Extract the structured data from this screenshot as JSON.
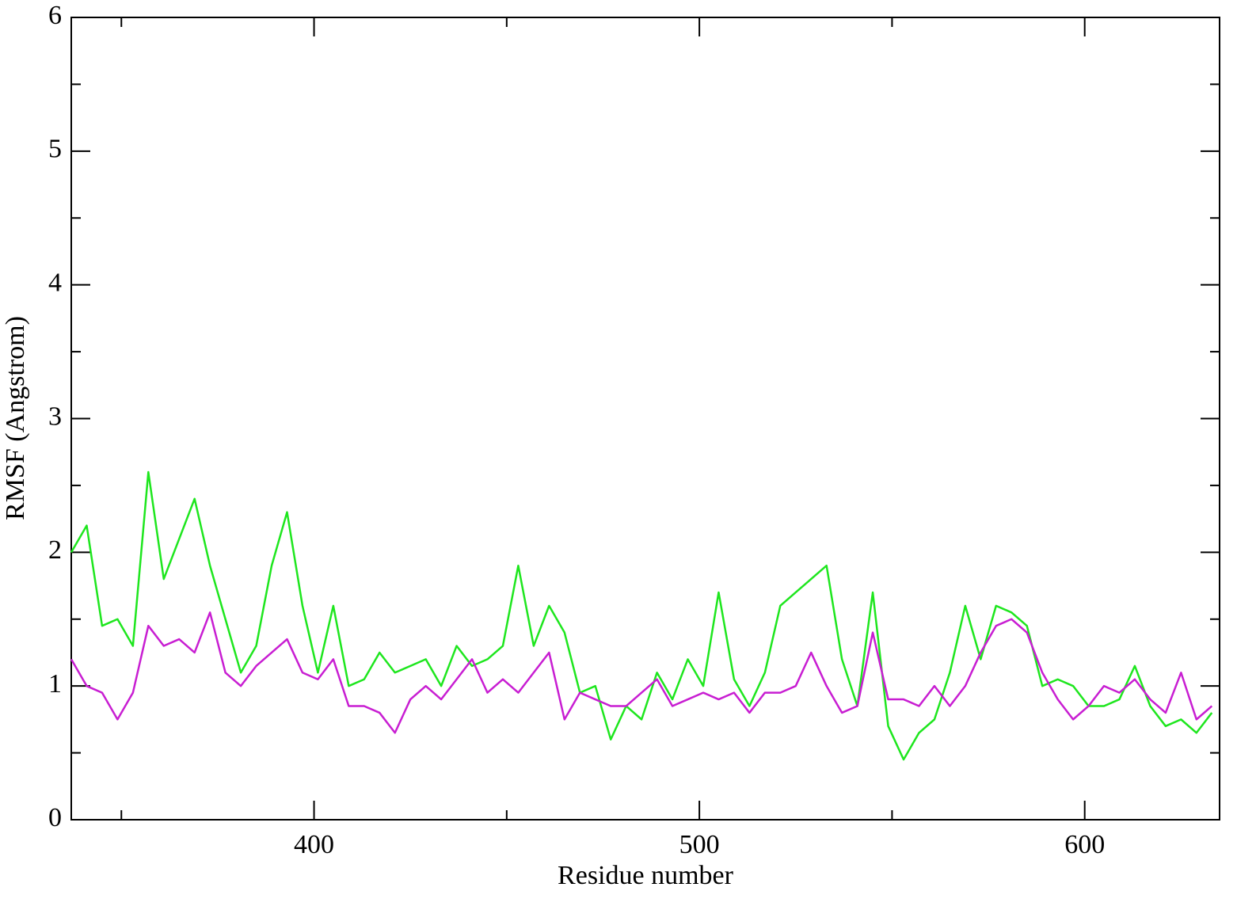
{
  "chart_data": {
    "type": "line",
    "xlabel": "Residue number",
    "ylabel": "RMSF (Angstrom)",
    "x": [
      337,
      341,
      345,
      349,
      353,
      357,
      361,
      365,
      369,
      373,
      377,
      381,
      385,
      389,
      393,
      397,
      401,
      405,
      409,
      413,
      417,
      421,
      425,
      429,
      433,
      437,
      441,
      445,
      449,
      453,
      457,
      461,
      465,
      469,
      473,
      477,
      481,
      485,
      489,
      493,
      497,
      501,
      505,
      509,
      513,
      517,
      521,
      525,
      529,
      533,
      537,
      541,
      545,
      549,
      553,
      557,
      561,
      565,
      569,
      573,
      577,
      581,
      585,
      589,
      593,
      597,
      601,
      605,
      609,
      613,
      617,
      621,
      625,
      629,
      633
    ],
    "series": [
      {
        "color": "#1ee61e",
        "values": [
          2.0,
          2.2,
          1.45,
          1.5,
          1.3,
          2.6,
          1.8,
          2.1,
          2.4,
          1.9,
          1.5,
          1.1,
          1.3,
          1.9,
          2.3,
          1.6,
          1.1,
          1.6,
          1.0,
          1.05,
          1.25,
          1.1,
          1.15,
          1.2,
          1.0,
          1.3,
          1.15,
          1.2,
          1.3,
          1.9,
          1.3,
          1.6,
          1.4,
          0.95,
          1.0,
          0.6,
          0.85,
          0.75,
          1.1,
          0.9,
          1.2,
          1.0,
          1.7,
          1.05,
          0.85,
          1.1,
          1.6,
          1.7,
          1.8,
          1.9,
          1.2,
          0.85,
          1.7,
          0.7,
          0.45,
          0.65,
          0.75,
          1.1,
          1.6,
          1.2,
          1.6,
          1.55,
          1.45,
          1.0,
          1.05,
          1.0,
          0.85,
          0.85,
          0.9,
          1.15,
          0.85,
          0.7,
          0.75,
          0.65,
          0.8
        ]
      },
      {
        "color": "#c81ed2",
        "values": [
          1.2,
          1.0,
          0.95,
          0.75,
          0.95,
          1.45,
          1.3,
          1.35,
          1.25,
          1.55,
          1.1,
          1.0,
          1.15,
          1.25,
          1.35,
          1.1,
          1.05,
          1.2,
          0.85,
          0.85,
          0.8,
          0.65,
          0.9,
          1.0,
          0.9,
          1.05,
          1.2,
          0.95,
          1.05,
          0.95,
          1.1,
          1.25,
          0.75,
          0.95,
          0.9,
          0.85,
          0.85,
          0.95,
          1.05,
          0.85,
          0.9,
          0.95,
          0.9,
          0.95,
          0.8,
          0.95,
          0.95,
          1.0,
          1.25,
          1.0,
          0.8,
          0.85,
          1.4,
          0.9,
          0.9,
          0.85,
          1.0,
          0.85,
          1.0,
          1.25,
          1.45,
          1.5,
          1.4,
          1.1,
          0.9,
          0.75,
          0.85,
          1.0,
          0.95,
          1.05,
          0.9,
          0.8,
          1.1,
          0.75,
          0.85
        ]
      }
    ],
    "xlim": [
      337,
      635
    ],
    "xticks": [
      400,
      500,
      600
    ],
    "xminorticks": [
      350,
      450,
      550
    ],
    "ylim": [
      0,
      6
    ],
    "yticks": [
      0,
      1,
      2,
      3,
      4,
      5,
      6
    ],
    "yminorticks": [
      0.5,
      1.5,
      2.5,
      3.5,
      4.5,
      5.5
    ]
  }
}
